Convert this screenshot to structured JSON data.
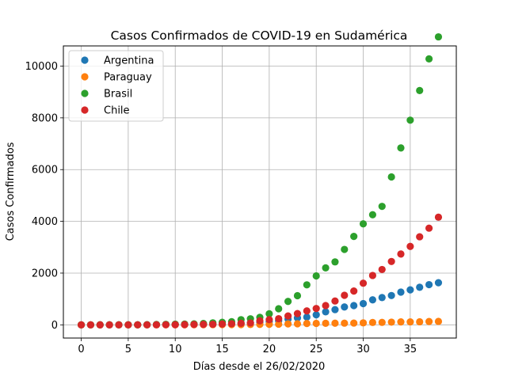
{
  "chart_data": {
    "type": "scatter",
    "title": "Casos Confirmados de COVID-19 en Sudamérica",
    "xlabel": "Días desde el 26/02/2020",
    "ylabel": "Casos Confirmados",
    "xlim": [
      -1.9,
      39.9
    ],
    "ylim": [
      -510,
      10780
    ],
    "xticks": [
      0,
      5,
      10,
      15,
      20,
      25,
      30,
      35
    ],
    "yticks": [
      0,
      2000,
      4000,
      6000,
      8000,
      10000
    ],
    "grid": true,
    "legend_position": "top-left",
    "x": [
      0,
      1,
      2,
      3,
      4,
      5,
      6,
      7,
      8,
      9,
      10,
      11,
      12,
      13,
      14,
      15,
      16,
      17,
      18,
      19,
      20,
      21,
      22,
      23,
      24,
      25,
      26,
      27,
      28,
      29,
      30,
      31,
      32,
      33,
      34,
      35,
      36,
      37,
      38
    ],
    "series": [
      {
        "name": "Argentina",
        "color": "#1f77b4",
        "values": [
          0,
          0,
          0,
          0,
          0,
          1,
          1,
          2,
          8,
          12,
          17,
          19,
          21,
          31,
          34,
          45,
          56,
          65,
          79,
          97,
          128,
          158,
          225,
          266,
          301,
          387,
          502,
          589,
          690,
          745,
          820,
          966,
          1054,
          1133,
          1265,
          1353,
          1451,
          1554,
          1628
        ]
      },
      {
        "name": "Paraguay",
        "color": "#ff7f0e",
        "values": [
          0,
          0,
          0,
          0,
          0,
          0,
          0,
          0,
          0,
          1,
          1,
          2,
          5,
          6,
          8,
          9,
          11,
          11,
          13,
          18,
          22,
          27,
          37,
          41,
          52,
          56,
          59,
          64,
          65,
          69,
          77,
          92,
          96,
          104,
          113,
          115,
          119,
          129,
          134
        ]
      },
      {
        "name": "Brasil",
        "color": "#2ca02c",
        "values": [
          1,
          1,
          2,
          2,
          2,
          2,
          3,
          8,
          13,
          20,
          25,
          31,
          38,
          52,
          77,
          98,
          121,
          200,
          234,
          291,
          428,
          621,
          904,
          1128,
          1546,
          1891,
          2201,
          2433,
          2915,
          3417,
          3904,
          4256,
          4579,
          5717,
          6836,
          7910,
          9056,
          10278,
          11130
        ]
      },
      {
        "name": "Chile",
        "color": "#d62728",
        "values": [
          0,
          0,
          0,
          0,
          0,
          0,
          1,
          1,
          4,
          5,
          7,
          11,
          13,
          17,
          23,
          33,
          43,
          61,
          74,
          155,
          201,
          238,
          342,
          434,
          537,
          632,
          746,
          922,
          1142,
          1306,
          1610,
          1909,
          2139,
          2449,
          2738,
          3031,
          3404,
          3737,
          4161
        ]
      }
    ]
  }
}
